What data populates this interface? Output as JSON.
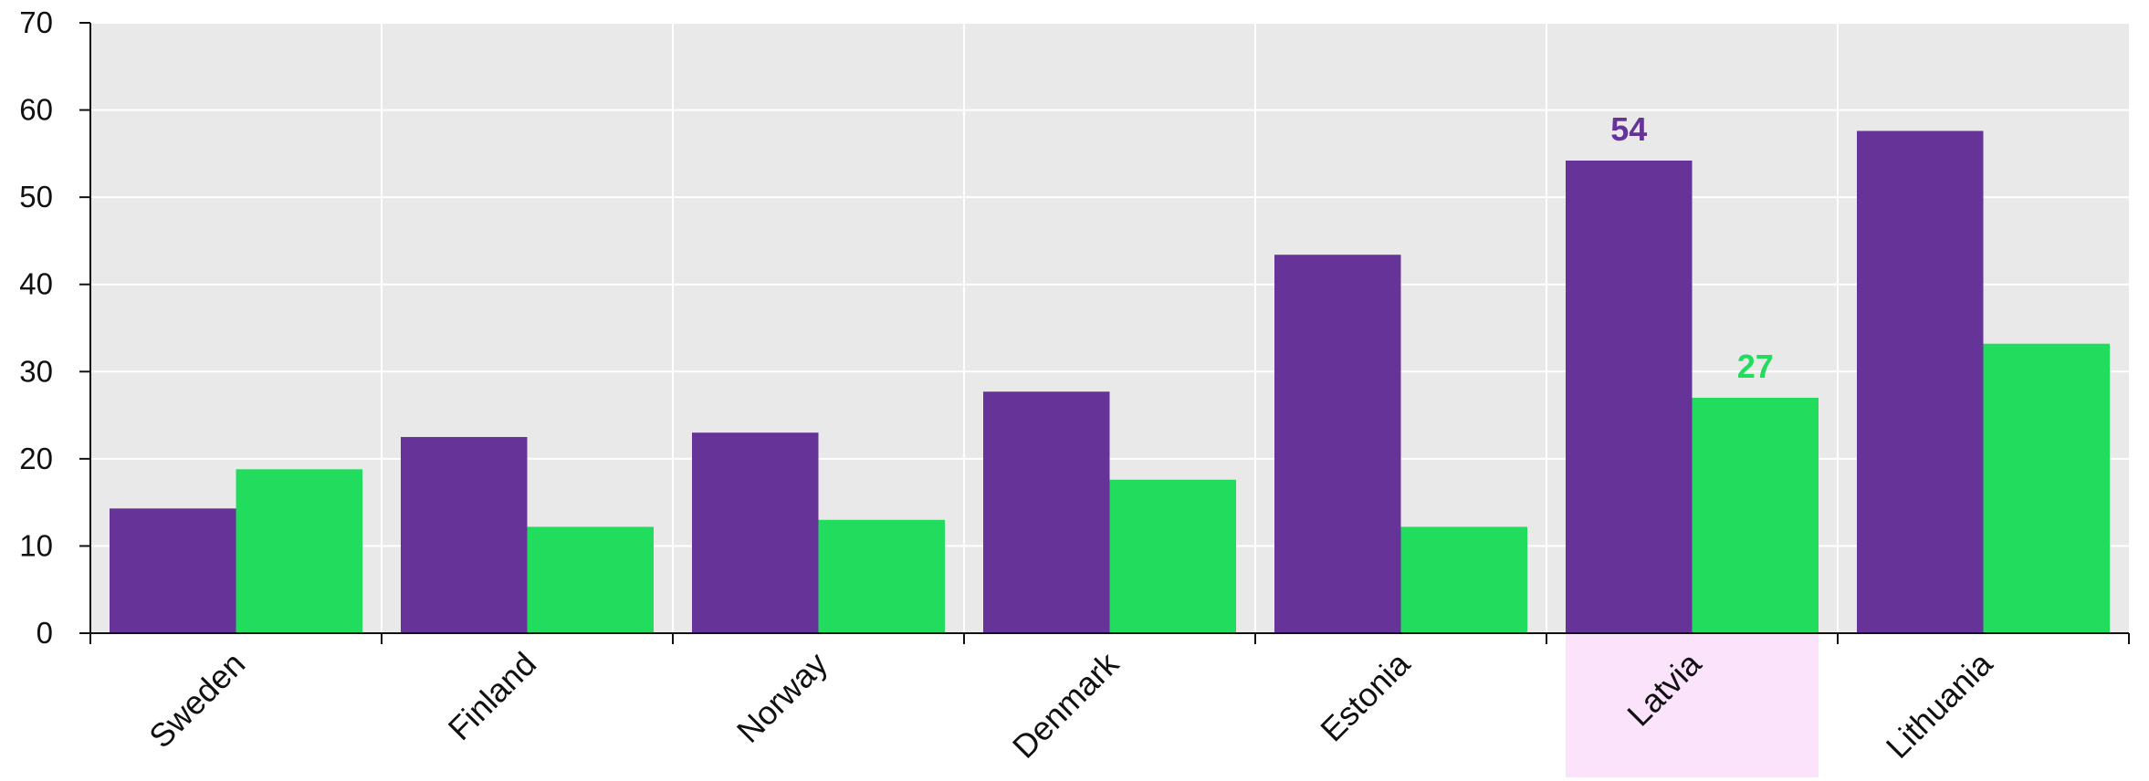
{
  "chart_data": {
    "type": "bar",
    "categories": [
      "Sweden",
      "Finland",
      "Norway",
      "Denmark",
      "Estonia",
      "Latvia",
      "Lithuania"
    ],
    "series": [
      {
        "values": [
          14.3,
          22.5,
          23.0,
          27.7,
          43.4,
          54.2,
          57.6
        ],
        "color": "#663399"
      },
      {
        "values": [
          18.8,
          12.2,
          13.0,
          17.6,
          12.2,
          27.0,
          33.2
        ],
        "color": "#22dd5d"
      }
    ],
    "ylim": [
      0,
      70
    ],
    "yticks": [
      0,
      10,
      20,
      30,
      40,
      50,
      60,
      70
    ],
    "ytick_labels": [
      "0",
      "10",
      "20",
      "30",
      "40",
      "50",
      "60",
      "70"
    ],
    "highlight_category": "Latvia",
    "data_labels": [
      {
        "series": 0,
        "category": "Latvia",
        "text": "54"
      },
      {
        "series": 1,
        "category": "Latvia",
        "text": "27"
      }
    ],
    "title": "",
    "xlabel": "",
    "ylabel": "",
    "grid": true,
    "legend": "none",
    "colors": {
      "plot_background": "#e9e9e9",
      "grid": "#ffffff",
      "highlight": "#fbe3fb",
      "axis": "#111111"
    }
  }
}
